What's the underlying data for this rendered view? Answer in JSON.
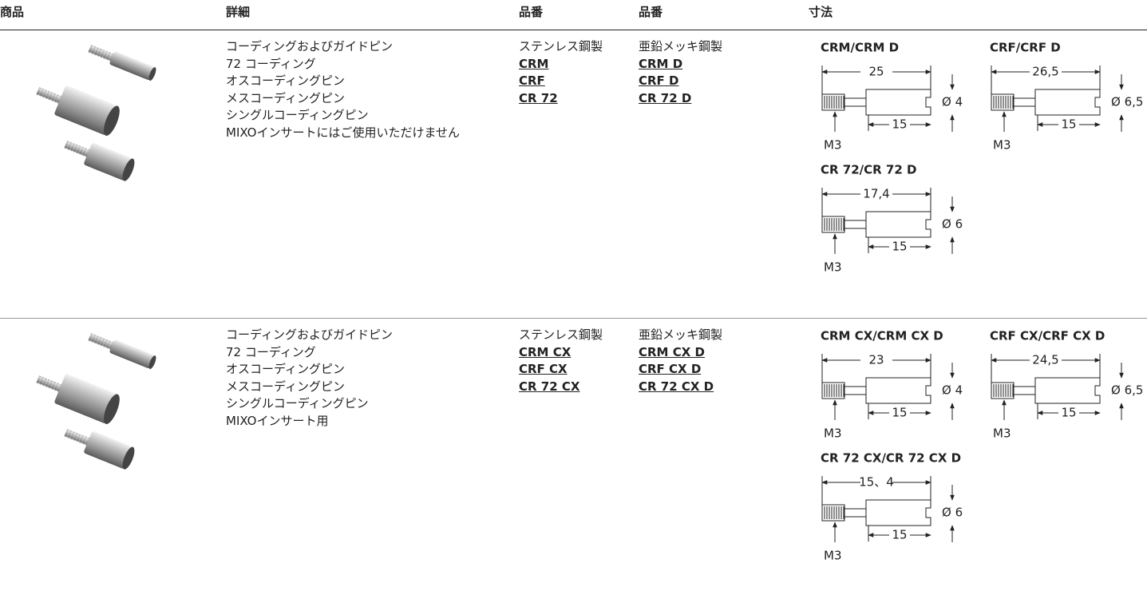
{
  "header": [
    "商品",
    "詳細",
    "品番",
    "品番",
    "寸法"
  ],
  "rows": [
    {
      "details": [
        "コーディングおよびガイドピン",
        "72 コーディング",
        "オスコーディングピン",
        "メスコーディングピン",
        "シングルコーディングピン",
        "MIXOインサートにはご使用いただけません"
      ],
      "material_1": "ステンレス鋼製",
      "parts_1": [
        "CRM",
        "CRF",
        "CR 72"
      ],
      "material_2": "亜鉛メッキ鋼製",
      "parts_2": [
        "CRM D",
        "CRF D",
        "CR 72 D"
      ],
      "drawings": [
        {
          "title": "CRM/CRM D",
          "length": "25",
          "shank": "15",
          "diameter": "Ø 4",
          "thread": "M3"
        },
        {
          "title": "CRF/CRF D",
          "length": "26,5",
          "shank": "15",
          "diameter": "Ø 6,5",
          "thread": "M3"
        },
        {
          "title": "CR 72/CR 72 D",
          "length": "17,4",
          "shank": "15",
          "diameter": "Ø 6",
          "thread": "M3"
        }
      ]
    },
    {
      "details": [
        "コーディングおよびガイドピン",
        "72 コーディング",
        "オスコーディングピン",
        "メスコーディングピン",
        "シングルコーディングピン",
        "MIXOインサート用"
      ],
      "material_1": "ステンレス鋼製",
      "parts_1": [
        "CRM CX",
        "CRF CX",
        "CR 72 CX"
      ],
      "material_2": "亜鉛メッキ鋼製",
      "parts_2": [
        "CRM CX D",
        "CRF CX D",
        "CR 72 CX D"
      ],
      "drawings": [
        {
          "title": "CRM CX/CRM CX D",
          "length": "23",
          "shank": "15",
          "diameter": "Ø 4",
          "thread": "M3"
        },
        {
          "title": "CRF CX/CRF CX D",
          "length": "24,5",
          "shank": "15",
          "diameter": "Ø 6,5",
          "thread": "M3"
        },
        {
          "title": "CR 72 CX/CR 72 CX D",
          "length": "15、4",
          "shank": "15",
          "diameter": "Ø 6",
          "thread": "M3"
        }
      ]
    }
  ]
}
